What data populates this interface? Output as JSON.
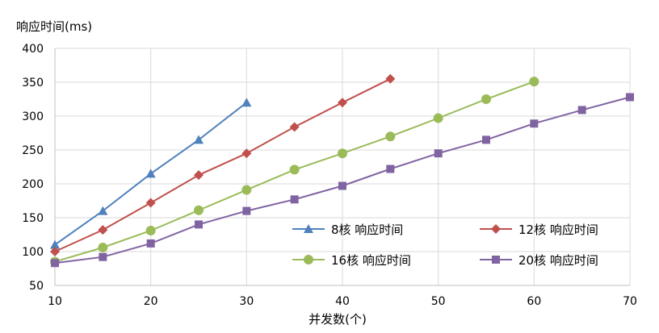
{
  "chart_data": {
    "type": "line",
    "title": "",
    "ylabel": "响应时间(ms)",
    "xlabel": "并发数(个)",
    "xlim": [
      10,
      70
    ],
    "ylim": [
      50,
      400
    ],
    "x_ticks": [
      10,
      20,
      30,
      40,
      50,
      60,
      70
    ],
    "y_ticks": [
      50,
      100,
      150,
      200,
      250,
      300,
      350,
      400
    ],
    "grid": true,
    "legend_position": "bottom-right",
    "series": [
      {
        "name": "8核 响应时间",
        "color": "#4f81bd",
        "marker": "triangle",
        "x": [
          10,
          15,
          20,
          25,
          30
        ],
        "y": [
          110,
          160,
          215,
          265,
          320
        ]
      },
      {
        "name": "12核 响应时间",
        "color": "#c0504d",
        "marker": "diamond",
        "x": [
          10,
          15,
          20,
          25,
          30,
          35,
          40,
          45
        ],
        "y": [
          100,
          132,
          172,
          213,
          245,
          284,
          320,
          355
        ]
      },
      {
        "name": "16核 响应时间",
        "color": "#9bbb59",
        "marker": "circle",
        "x": [
          10,
          15,
          20,
          25,
          30,
          35,
          40,
          45,
          50,
          55,
          60
        ],
        "y": [
          85,
          106,
          131,
          161,
          191,
          221,
          245,
          270,
          297,
          325,
          351
        ]
      },
      {
        "name": "20核 响应时间",
        "color": "#8064a2",
        "marker": "square",
        "x": [
          10,
          15,
          20,
          25,
          30,
          35,
          40,
          45,
          50,
          55,
          60,
          65,
          70
        ],
        "y": [
          83,
          92,
          112,
          140,
          160,
          177,
          197,
          222,
          245,
          265,
          289,
          309,
          328
        ]
      }
    ]
  }
}
